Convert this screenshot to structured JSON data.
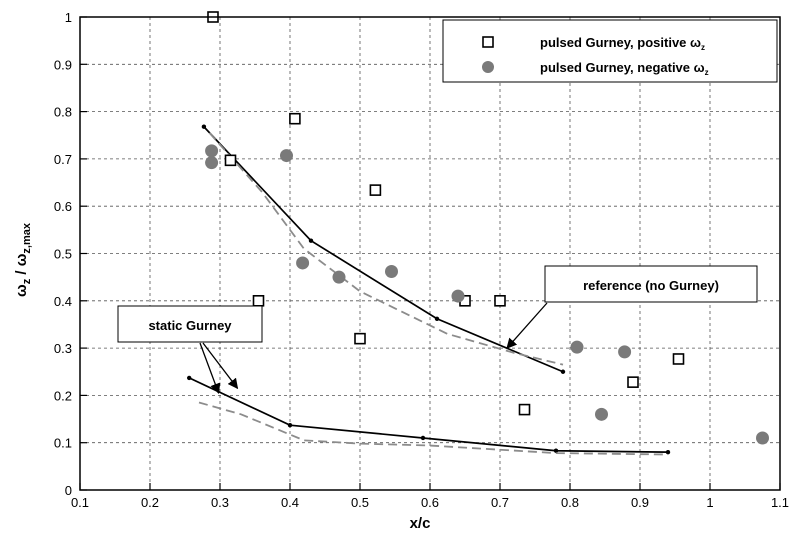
{
  "chart_data": {
    "type": "scatter",
    "xlabel": "x/c",
    "ylabel": "ωz / ωz,max",
    "ylabel_parts": {
      "main": "ω",
      "sub1": "z",
      "slash": " / ",
      "main2": "ω",
      "sub2": "z,max"
    },
    "xlim": [
      0.1,
      1.1
    ],
    "ylim": [
      0,
      1
    ],
    "xticks": [
      "0.1",
      "0.2",
      "0.3",
      "0.4",
      "0.5",
      "0.6",
      "0.7",
      "0.8",
      "0.9",
      "1",
      "1.1"
    ],
    "yticks": [
      "0",
      "0.1",
      "0.2",
      "0.3",
      "0.4",
      "0.5",
      "0.6",
      "0.7",
      "0.8",
      "0.9",
      "1"
    ],
    "grid": true,
    "legend_position": "top-right",
    "series": [
      {
        "name": "pulsed Gurney, positive ωz",
        "legend_text": "pulsed Gurney, positive ω",
        "legend_sub": "z",
        "marker": "open-square",
        "color": "#000000",
        "points": [
          [
            0.29,
            1.0
          ],
          [
            0.315,
            0.697
          ],
          [
            0.407,
            0.785
          ],
          [
            0.355,
            0.4
          ],
          [
            0.5,
            0.32
          ],
          [
            0.522,
            0.634
          ],
          [
            0.65,
            0.4
          ],
          [
            0.7,
            0.4
          ],
          [
            0.735,
            0.17
          ],
          [
            0.89,
            0.228
          ],
          [
            0.955,
            0.277
          ]
        ]
      },
      {
        "name": "pulsed Gurney, negative ωz",
        "legend_text": "pulsed Gurney, negative ω",
        "legend_sub": "z",
        "marker": "filled-circle",
        "color": "#7a7a7a",
        "points": [
          [
            0.288,
            0.717
          ],
          [
            0.288,
            0.692
          ],
          [
            0.395,
            0.707
          ],
          [
            0.418,
            0.48
          ],
          [
            0.47,
            0.45
          ],
          [
            0.545,
            0.462
          ],
          [
            0.64,
            0.41
          ],
          [
            0.81,
            0.302
          ],
          [
            0.845,
            0.16
          ],
          [
            0.878,
            0.292
          ],
          [
            1.075,
            0.11
          ]
        ]
      },
      {
        "marker": "line",
        "style": "solid",
        "color": "#000000",
        "points": [
          [
            0.277,
            0.768
          ],
          [
            0.43,
            0.527
          ],
          [
            0.61,
            0.362
          ],
          [
            0.79,
            0.25
          ]
        ]
      },
      {
        "marker": "line",
        "style": "dashed",
        "color": "#8c8c8c",
        "points": [
          [
            0.285,
            0.755
          ],
          [
            0.36,
            0.63
          ],
          [
            0.42,
            0.51
          ],
          [
            0.5,
            0.42
          ],
          [
            0.625,
            0.33
          ],
          [
            0.72,
            0.29
          ],
          [
            0.79,
            0.265
          ]
        ]
      },
      {
        "marker": "line",
        "style": "solid",
        "color": "#000000",
        "points": [
          [
            0.256,
            0.237
          ],
          [
            0.4,
            0.137
          ],
          [
            0.59,
            0.11
          ],
          [
            0.78,
            0.083
          ],
          [
            0.94,
            0.08
          ]
        ]
      },
      {
        "marker": "line",
        "style": "dashed",
        "color": "#8c8c8c",
        "points": [
          [
            0.27,
            0.185
          ],
          [
            0.33,
            0.16
          ],
          [
            0.42,
            0.105
          ],
          [
            0.5,
            0.098
          ],
          [
            0.6,
            0.094
          ],
          [
            0.78,
            0.078
          ],
          [
            0.94,
            0.075
          ]
        ]
      }
    ],
    "annotations": [
      {
        "text": "reference (no Gurney)",
        "position": "right",
        "target": [
          0.71,
          0.3
        ]
      },
      {
        "text": "static Gurney",
        "position": "left",
        "targets": [
          [
            0.298,
            0.205
          ],
          [
            0.325,
            0.215
          ]
        ]
      }
    ]
  }
}
